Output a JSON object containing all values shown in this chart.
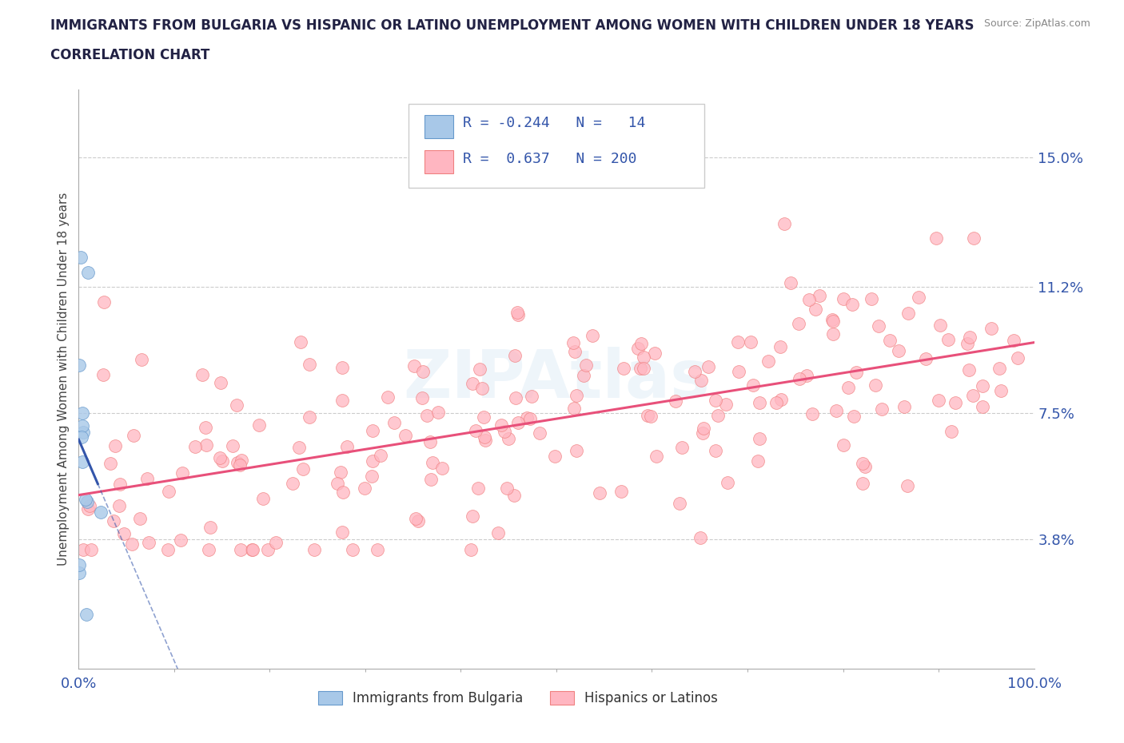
{
  "title_line1": "IMMIGRANTS FROM BULGARIA VS HISPANIC OR LATINO UNEMPLOYMENT AMONG WOMEN WITH CHILDREN UNDER 18 YEARS",
  "title_line2": "CORRELATION CHART",
  "source_text": "Source: ZipAtlas.com",
  "ylabel": "Unemployment Among Women with Children Under 18 years",
  "xlim": [
    0,
    100
  ],
  "ylim": [
    0,
    17
  ],
  "ytick_values": [
    3.8,
    7.5,
    11.2,
    15.0
  ],
  "ytick_labels": [
    "3.8%",
    "7.5%",
    "11.2%",
    "15.0%"
  ],
  "blue_R": -0.244,
  "blue_N": 14,
  "pink_R": 0.637,
  "pink_N": 200,
  "blue_marker_fill": "#a8c8e8",
  "blue_marker_edge": "#6699cc",
  "pink_marker_fill": "#ffb6c1",
  "pink_marker_edge": "#f08080",
  "trend_blue_color": "#3355aa",
  "trend_pink_color": "#e8507a",
  "watermark": "ZIPAtlas",
  "legend_label_blue": "Immigrants from Bulgaria",
  "legend_label_pink": "Hispanics or Latinos",
  "blue_legend_fill": "#a8c8e8",
  "blue_legend_edge": "#6699cc",
  "pink_legend_fill": "#ffb6c1",
  "pink_legend_edge": "#f08080",
  "title_color": "#222244",
  "axis_label_color": "#3355aa",
  "source_color": "#888888"
}
